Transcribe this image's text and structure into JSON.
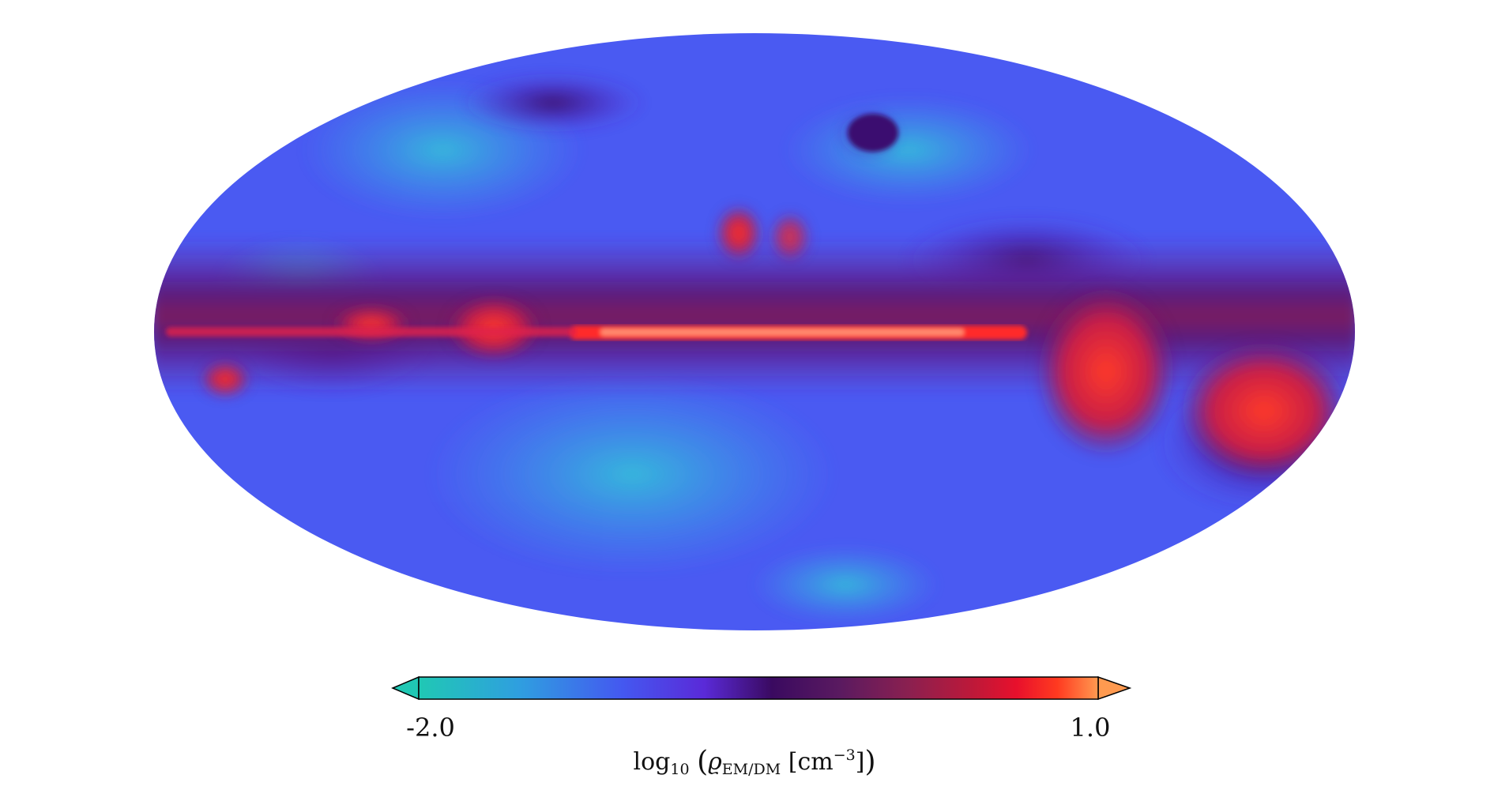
{
  "colorbar": {
    "min_label": "-2.0",
    "max_label": "1.0",
    "label": {
      "log": "log",
      "log_sub": "10",
      "paren_open": "(",
      "rho": "ϱ",
      "rho_sub": "EM/DM",
      "unit_open": "[cm",
      "unit_exp": "−3",
      "unit_close": "]",
      "paren_close": ")"
    },
    "colors": [
      "#20c8b4",
      "#2f9ee0",
      "#4458f0",
      "#5a2ad8",
      "#3a0a70",
      "#5a1a60",
      "#8a2050",
      "#c01838",
      "#e8102c",
      "#ff3a20",
      "#ff9a50"
    ]
  },
  "map": {
    "projection": "Mollweide",
    "background_color": "#4a5af2",
    "band_color": "#ff2a2a",
    "low_color": "#3aa0e8"
  }
}
